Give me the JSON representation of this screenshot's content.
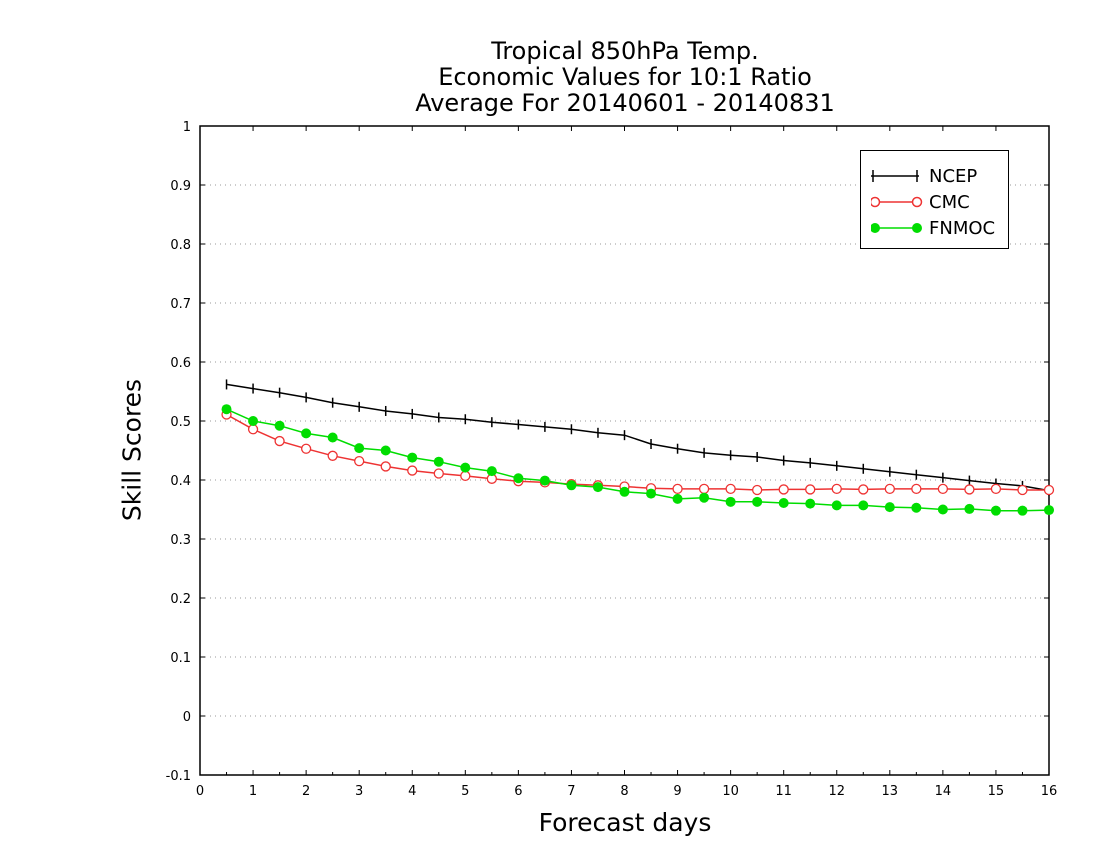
{
  "chart_data": {
    "type": "line",
    "title": [
      "Tropical 850hPa Temp.",
      "Economic Values for 10:1 Ratio",
      "Average For 20140601 - 20140831"
    ],
    "xlabel": "Forecast days",
    "ylabel": "Skill Scores",
    "xlim": [
      0,
      16
    ],
    "ylim": [
      -0.1,
      1
    ],
    "xticks": [
      "0",
      "1",
      "2",
      "3",
      "4",
      "5",
      "6",
      "7",
      "8",
      "9",
      "10",
      "11",
      "12",
      "13",
      "14",
      "15",
      "16"
    ],
    "yticks": [
      "-0.1",
      "0",
      "0.1",
      "0.2",
      "0.3",
      "0.4",
      "0.5",
      "0.6",
      "0.7",
      "0.8",
      "0.9",
      "1"
    ],
    "grid": "horizontal dotted",
    "legend_position": "top-right",
    "x": [
      0.5,
      1,
      1.5,
      2,
      2.5,
      3,
      3.5,
      4,
      4.5,
      5,
      5.5,
      6,
      6.5,
      7,
      7.5,
      8,
      8.5,
      9,
      9.5,
      10,
      10.5,
      11,
      11.5,
      12,
      12.5,
      13,
      13.5,
      14,
      14.5,
      15,
      15.5,
      16
    ],
    "series": [
      {
        "name": "NCEP",
        "color": "#000000",
        "marker": "plus",
        "values": [
          0.562,
          0.555,
          0.548,
          0.54,
          0.531,
          0.524,
          0.517,
          0.512,
          0.506,
          0.503,
          0.498,
          0.494,
          0.49,
          0.486,
          0.48,
          0.476,
          0.461,
          0.453,
          0.446,
          0.442,
          0.439,
          0.433,
          0.429,
          0.424,
          0.419,
          0.414,
          0.409,
          0.404,
          0.399,
          0.394,
          0.39,
          0.382
        ]
      },
      {
        "name": "CMC",
        "color": "#ee3333",
        "marker": "open-circle",
        "values": [
          0.511,
          0.486,
          0.466,
          0.453,
          0.441,
          0.432,
          0.423,
          0.416,
          0.411,
          0.407,
          0.402,
          0.398,
          0.396,
          0.393,
          0.391,
          0.389,
          0.386,
          0.385,
          0.385,
          0.385,
          0.383,
          0.384,
          0.384,
          0.385,
          0.384,
          0.385,
          0.385,
          0.385,
          0.384,
          0.385,
          0.383,
          0.383
        ]
      },
      {
        "name": "FNMOC",
        "color": "#00dd00",
        "marker": "filled-circle",
        "values": [
          0.52,
          0.5,
          0.492,
          0.479,
          0.472,
          0.454,
          0.45,
          0.438,
          0.431,
          0.421,
          0.415,
          0.403,
          0.399,
          0.391,
          0.388,
          0.38,
          0.377,
          0.368,
          0.37,
          0.363,
          0.363,
          0.361,
          0.36,
          0.357,
          0.357,
          0.354,
          0.353,
          0.35,
          0.351,
          0.348,
          0.348,
          0.349
        ]
      }
    ]
  }
}
